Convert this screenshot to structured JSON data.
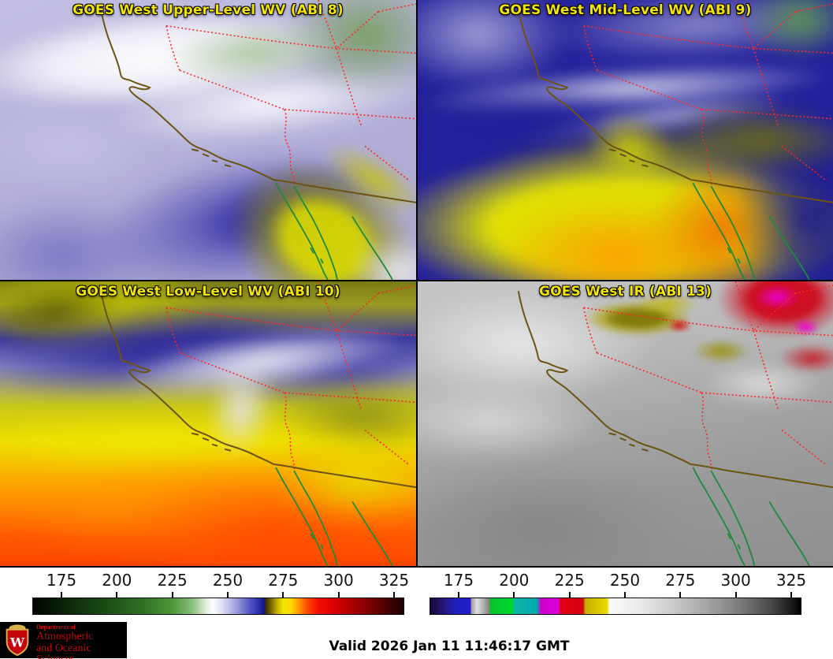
{
  "panels": [
    {
      "title": "GOES West Upper-Level WV (ABI 8)"
    },
    {
      "title": "GOES West Mid-Level WV (ABI 9)"
    },
    {
      "title": "GOES West Low-Level WV (ABI 10)"
    },
    {
      "title": "GOES West IR (ABI 13)"
    }
  ],
  "colorbars": {
    "wv": {
      "ticks": [
        "175",
        "200",
        "225",
        "250",
        "275",
        "300",
        "325"
      ]
    },
    "ir": {
      "ticks": [
        "175",
        "200",
        "225",
        "250",
        "275",
        "300",
        "325"
      ]
    }
  },
  "footer": {
    "valid": "Valid 2026 Jan 11 11:46:17 GMT",
    "logo": {
      "department": "Department of",
      "line1": "Atmospheric",
      "line2": "and Oceanic Sciences",
      "crest_letter": "W"
    }
  },
  "colors": {
    "title_yellow": "#f2e400",
    "state_border_red": "#fa2828",
    "coastline_brown": "#6b5413",
    "mexico_coast_green": "#1e8a3a",
    "logo_red": "#c5050c"
  }
}
